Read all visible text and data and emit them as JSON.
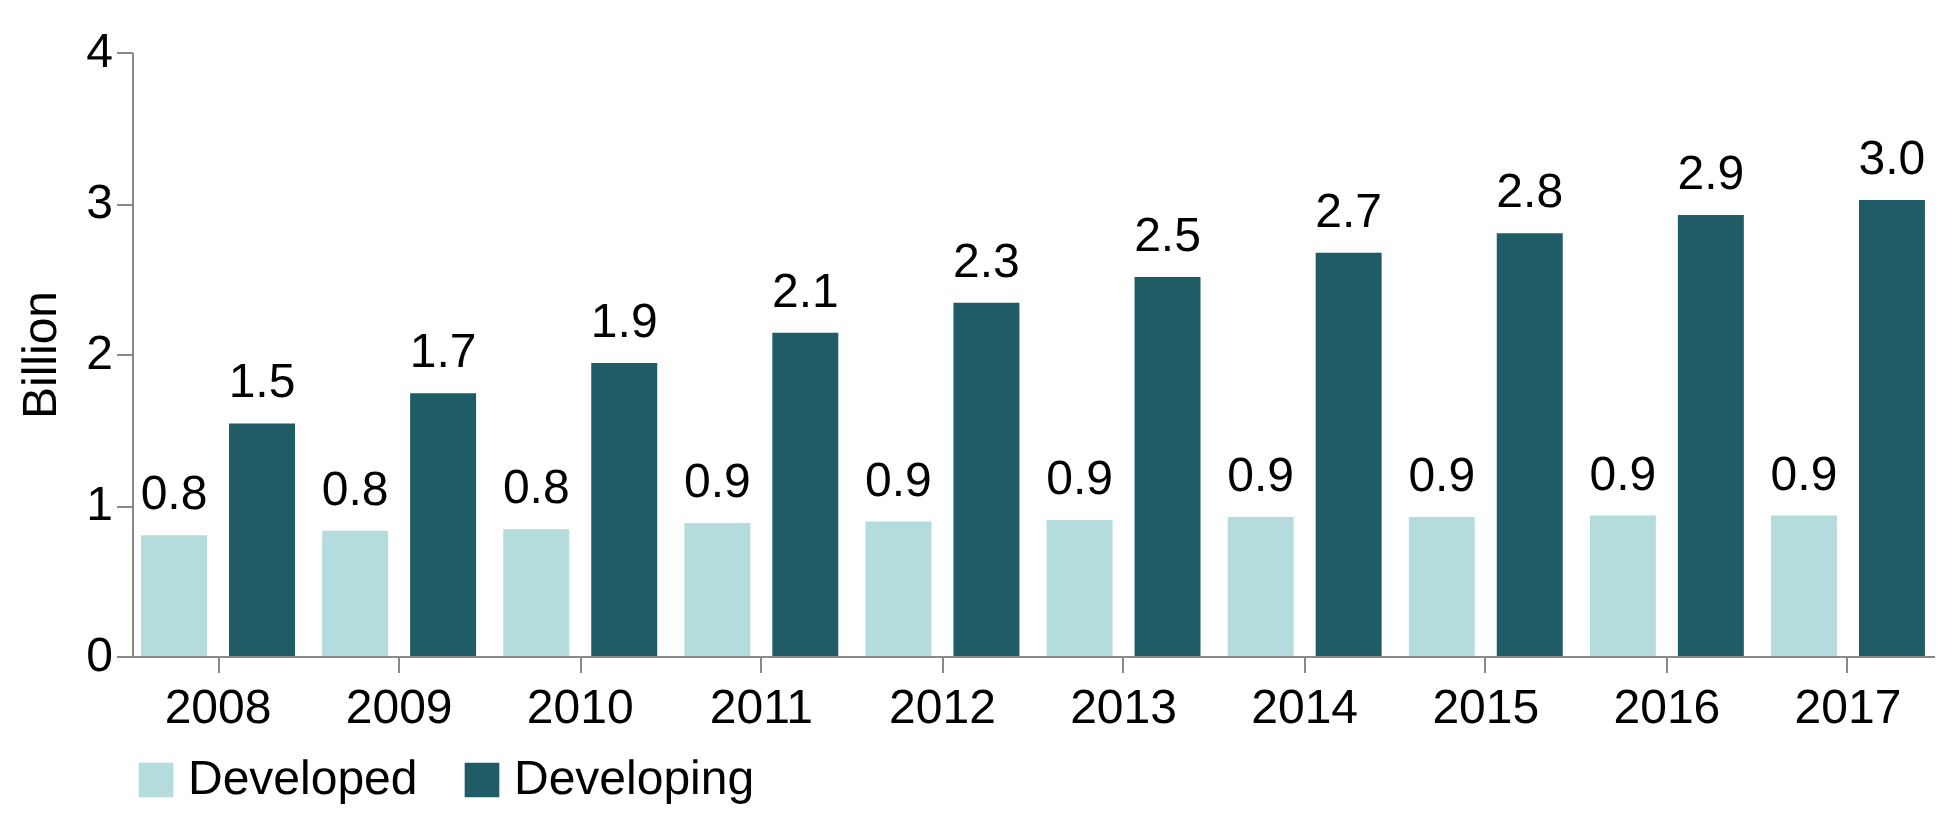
{
  "chart_data": {
    "type": "bar",
    "ylabel": "Billion",
    "categories": [
      "2008",
      "2009",
      "2010",
      "2011",
      "2012",
      "2013",
      "2014",
      "2015",
      "2016",
      "2017"
    ],
    "series": [
      {
        "name": "Developed",
        "color": "#b5dcdd",
        "values": [
          0.8,
          0.83,
          0.84,
          0.88,
          0.89,
          0.9,
          0.92,
          0.92,
          0.93,
          0.93
        ],
        "value_labels": [
          "0.8",
          "0.8",
          "0.8",
          "0.9",
          "0.9",
          "0.9",
          "0.9",
          "0.9",
          "0.9",
          "0.9"
        ]
      },
      {
        "name": "Developing",
        "color": "#1f5c66",
        "values": [
          1.54,
          1.74,
          1.94,
          2.14,
          2.34,
          2.51,
          2.67,
          2.8,
          2.92,
          3.02
        ],
        "value_labels": [
          "1.5",
          "1.7",
          "1.9",
          "2.1",
          "2.3",
          "2.5",
          "2.7",
          "2.8",
          "2.9",
          "3.0"
        ]
      }
    ],
    "ylim": [
      0,
      4
    ],
    "yticks": [
      0,
      1,
      2,
      3,
      4
    ],
    "grid": false,
    "legend": "bottom left"
  }
}
